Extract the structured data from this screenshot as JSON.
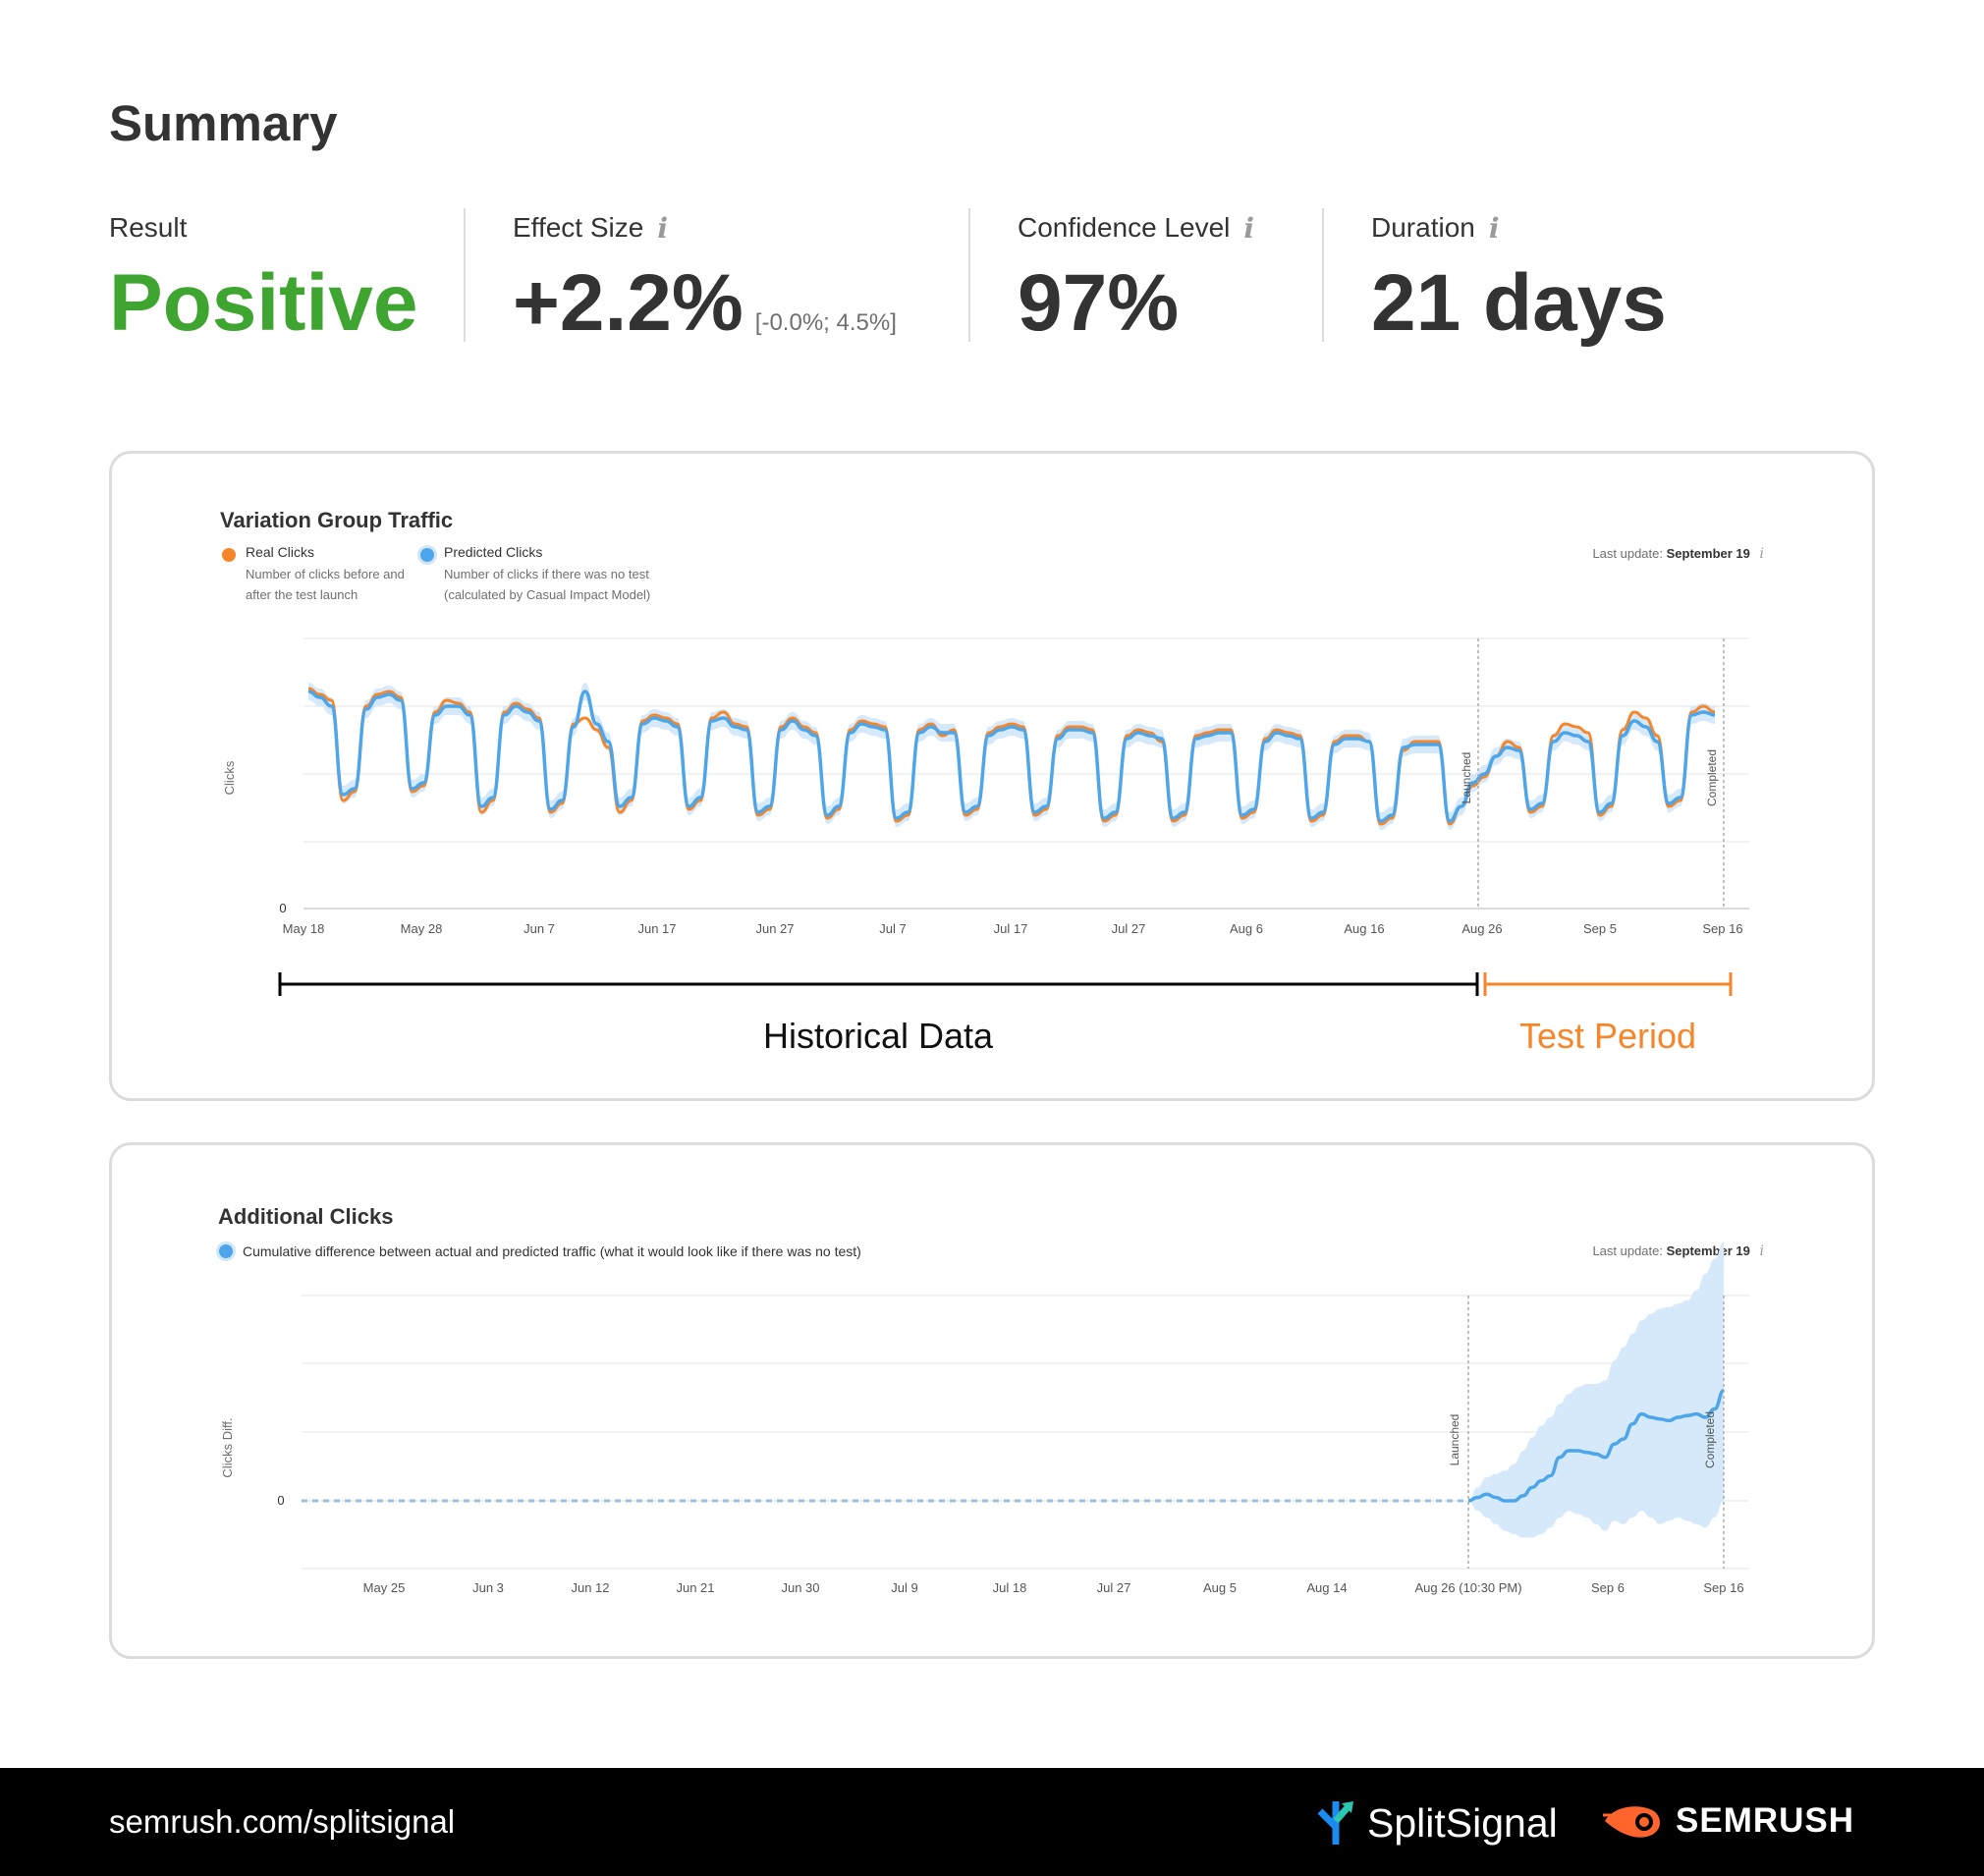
{
  "summary": {
    "title": "Summary",
    "result_label": "Result",
    "result_value": "Positive",
    "effect_label": "Effect Size",
    "effect_value": "+2.2%",
    "effect_ci": "[-0.0%; 4.5%]",
    "confidence_label": "Confidence Level",
    "confidence_value": "97%",
    "duration_label": "Duration",
    "duration_value": "21 days",
    "info_glyph": "i"
  },
  "colors": {
    "positive": "#3ea530",
    "real_clicks": "#f5862a",
    "predicted_clicks": "#4ea6ea",
    "band": "#d6e9fa",
    "test_period": "#f5862a",
    "footer_bg": "#000000",
    "semrush_orange": "#ff642d",
    "splitsignal_teal": "#2bc7b3",
    "splitsignal_blue": "#1b8bf0"
  },
  "traffic_chart": {
    "title": "Variation Group Traffic",
    "legend": [
      {
        "name": "Real Clicks",
        "desc": "Number of clicks before and after the test launch"
      },
      {
        "name": "Predicted Clicks",
        "desc": "Number of clicks if there was no test (calculated by Casual Impact Model)"
      }
    ],
    "last_update_label": "Last update:",
    "last_update_value": "September 19",
    "ylabel": "Clicks",
    "y_zero_label": "0",
    "x_ticks": [
      "May 18",
      "May 28",
      "Jun 7",
      "Jun 17",
      "Jun 27",
      "Jul 7",
      "Jul 17",
      "Jul 27",
      "Aug 6",
      "Aug 16",
      "Aug 26",
      "Sep 5",
      "Sep 16"
    ],
    "markers": [
      "Launched",
      "Completed"
    ],
    "historical_label": "Historical Data",
    "test_label": "Test Period"
  },
  "additional_chart": {
    "title": "Additional Clicks",
    "legend_text": "Cumulative difference between actual and predicted traffic (what it would look like if there was no test)",
    "last_update_label": "Last update:",
    "last_update_value": "September 19",
    "ylabel": "Clicks Diff.",
    "y_zero_label": "0",
    "x_ticks": [
      "May 25",
      "Jun 3",
      "Jun 12",
      "Jun 21",
      "Jun 30",
      "Jul 9",
      "Jul 18",
      "Jul 27",
      "Aug 5",
      "Aug 14",
      "Aug 26 (10:30 PM)",
      "Sep 6",
      "Sep 16"
    ],
    "markers": [
      "Launched",
      "Completed"
    ]
  },
  "chart_data": [
    {
      "type": "line",
      "title": "Variation Group Traffic",
      "ylabel": "Clicks",
      "x_start": "May 18",
      "x_end": "Sep 16",
      "launched": "Aug 26",
      "completed": "Sep 16",
      "weekly_pattern": "weekday highs, weekend lows",
      "series": [
        {
          "name": "Real Clicks",
          "relative_level": [
            0.68,
            0.66,
            0.64,
            0.3,
            0.33,
            0.62,
            0.66,
            0.67,
            0.65,
            0.33,
            0.35,
            0.6,
            0.64,
            0.63,
            0.6,
            0.26,
            0.3,
            0.6,
            0.63,
            0.61,
            0.58,
            0.26,
            0.29,
            0.56,
            0.58,
            0.54,
            0.48,
            0.26,
            0.3,
            0.57,
            0.59,
            0.58,
            0.56,
            0.27,
            0.3,
            0.58,
            0.6,
            0.56,
            0.55,
            0.25,
            0.27,
            0.55,
            0.58,
            0.55,
            0.53,
            0.24,
            0.27,
            0.54,
            0.57,
            0.56,
            0.55,
            0.23,
            0.25,
            0.54,
            0.56,
            0.52,
            0.54,
            0.25,
            0.27,
            0.53,
            0.55,
            0.56,
            0.55,
            0.25,
            0.27,
            0.52,
            0.55,
            0.55,
            0.54,
            0.23,
            0.25,
            0.52,
            0.54,
            0.53,
            0.5,
            0.23,
            0.25,
            0.52,
            0.53,
            0.54,
            0.54,
            0.24,
            0.26,
            0.51,
            0.54,
            0.53,
            0.52,
            0.23,
            0.25,
            0.5,
            0.52,
            0.52,
            0.5,
            0.22,
            0.24,
            0.47,
            0.5,
            0.5,
            0.5,
            0.22,
            0.28,
            0.35,
            0.38,
            0.45,
            0.5,
            0.48,
            0.26,
            0.28,
            0.52,
            0.56,
            0.55,
            0.53,
            0.25,
            0.28,
            0.54,
            0.6,
            0.58,
            0.52,
            0.28,
            0.3,
            0.6,
            0.62,
            0.6
          ]
        },
        {
          "name": "Predicted Clicks",
          "relative_level": [
            0.67,
            0.65,
            0.62,
            0.32,
            0.34,
            0.61,
            0.65,
            0.66,
            0.64,
            0.34,
            0.36,
            0.59,
            0.62,
            0.62,
            0.59,
            0.28,
            0.31,
            0.59,
            0.62,
            0.6,
            0.57,
            0.27,
            0.3,
            0.55,
            0.67,
            0.56,
            0.5,
            0.28,
            0.31,
            0.56,
            0.58,
            0.57,
            0.55,
            0.28,
            0.31,
            0.57,
            0.58,
            0.55,
            0.54,
            0.26,
            0.28,
            0.54,
            0.57,
            0.54,
            0.52,
            0.25,
            0.28,
            0.53,
            0.56,
            0.55,
            0.54,
            0.24,
            0.26,
            0.53,
            0.55,
            0.53,
            0.53,
            0.26,
            0.28,
            0.52,
            0.54,
            0.55,
            0.54,
            0.26,
            0.28,
            0.51,
            0.54,
            0.54,
            0.53,
            0.24,
            0.26,
            0.51,
            0.53,
            0.52,
            0.51,
            0.24,
            0.26,
            0.51,
            0.52,
            0.53,
            0.53,
            0.25,
            0.27,
            0.5,
            0.53,
            0.52,
            0.51,
            0.24,
            0.26,
            0.49,
            0.51,
            0.51,
            0.5,
            0.23,
            0.25,
            0.48,
            0.49,
            0.49,
            0.49,
            0.23,
            0.28,
            0.36,
            0.39,
            0.45,
            0.48,
            0.47,
            0.27,
            0.29,
            0.5,
            0.53,
            0.52,
            0.5,
            0.26,
            0.29,
            0.52,
            0.57,
            0.55,
            0.5,
            0.29,
            0.31,
            0.59,
            0.6,
            0.59
          ]
        }
      ]
    },
    {
      "type": "area",
      "title": "Additional Clicks",
      "ylabel": "Clicks Diff.",
      "x_start": "May 25",
      "launched": "Aug 26 (10:30 PM)",
      "completed": "Sep 16",
      "pre_launch_value": 0,
      "series": [
        {
          "name": "Cumulative difference",
          "post_launch_relative": [
            0,
            0.02,
            0.04,
            0.02,
            0.0,
            0.0,
            0.03,
            0.08,
            0.12,
            0.15,
            0.26,
            0.3,
            0.3,
            0.29,
            0.28,
            0.26,
            0.34,
            0.37,
            0.46,
            0.52,
            0.5,
            0.49,
            0.48,
            0.5,
            0.51,
            0.52,
            0.5,
            0.55,
            0.66
          ]
        },
        {
          "name": "Upper bound",
          "post_launch_relative": [
            0,
            0.08,
            0.14,
            0.16,
            0.18,
            0.22,
            0.3,
            0.38,
            0.45,
            0.5,
            0.58,
            0.64,
            0.68,
            0.7,
            0.7,
            0.72,
            0.84,
            0.92,
            1.0,
            1.08,
            1.12,
            1.15,
            1.16,
            1.18,
            1.2,
            1.26,
            1.36,
            1.45,
            1.55
          ]
        },
        {
          "name": "Lower bound",
          "post_launch_relative": [
            0,
            -0.06,
            -0.1,
            -0.14,
            -0.18,
            -0.2,
            -0.22,
            -0.22,
            -0.2,
            -0.16,
            -0.1,
            -0.06,
            -0.08,
            -0.1,
            -0.14,
            -0.18,
            -0.12,
            -0.14,
            -0.1,
            -0.06,
            -0.1,
            -0.14,
            -0.12,
            -0.1,
            -0.12,
            -0.14,
            -0.16,
            -0.1,
            0.0
          ]
        }
      ]
    }
  ],
  "footer": {
    "url": "semrush.com/splitsignal",
    "brand_split": "SplitSignal",
    "brand_semrush": "SEMRUSH"
  }
}
